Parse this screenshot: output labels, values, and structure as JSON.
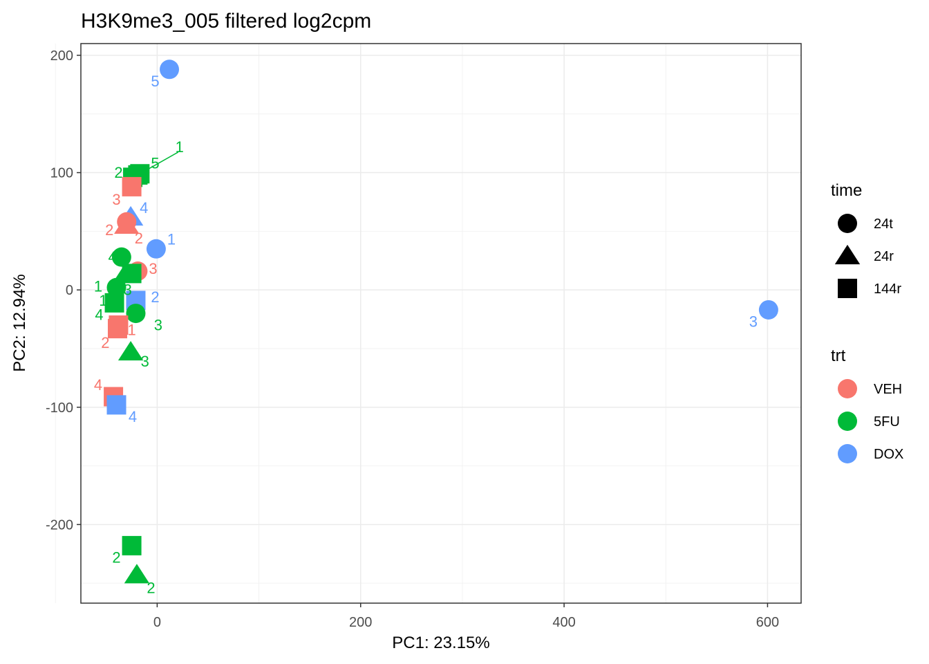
{
  "chart_data": {
    "type": "scatter",
    "title": "H3K9me3_005 filtered log2cpm",
    "xlabel": "PC1: 23.15%",
    "ylabel": "PC2: 12.94%",
    "xlim": [
      -75,
      633
    ],
    "ylim": [
      -267,
      210
    ],
    "x_ticks": [
      0,
      200,
      400,
      600
    ],
    "y_ticks": [
      -200,
      -100,
      0,
      100,
      200
    ],
    "grid": true,
    "legend_position": "right",
    "color_legend": {
      "title": "trt",
      "entries": [
        {
          "label": "VEH",
          "color": "#F8766D"
        },
        {
          "label": "5FU",
          "color": "#00BA38"
        },
        {
          "label": "DOX",
          "color": "#619CFF"
        }
      ]
    },
    "shape_legend": {
      "title": "time",
      "entries": [
        {
          "label": "24t",
          "shape": "circle"
        },
        {
          "label": "24r",
          "shape": "triangle"
        },
        {
          "label": "144r",
          "shape": "square"
        }
      ]
    },
    "points": [
      {
        "trt": "DOX",
        "time": "24t",
        "x": 12,
        "y": 188,
        "label": "5",
        "lx": -2,
        "ly": 177
      },
      {
        "trt": "5FU",
        "time": "144r",
        "x": -17,
        "y": 99,
        "label": "5",
        "lx": -2,
        "ly": 107
      },
      {
        "trt": "5FU",
        "time": "144r",
        "x": -19,
        "y": 98,
        "label": "1",
        "lx": 22,
        "ly": 121,
        "line": true
      },
      {
        "trt": "5FU",
        "time": "144r",
        "x": -24,
        "y": 96,
        "label": "2",
        "lx": -38,
        "ly": 99
      },
      {
        "trt": "VEH",
        "time": "144r",
        "x": -25,
        "y": 88,
        "label": "3",
        "lx": -40,
        "ly": 76
      },
      {
        "trt": "DOX",
        "time": "24r",
        "x": -26,
        "y": 62,
        "label": "4",
        "lx": -13,
        "ly": 69
      },
      {
        "trt": "VEH",
        "time": "24t",
        "x": -30,
        "y": 58,
        "label": "2",
        "lx": -47,
        "ly": 50
      },
      {
        "trt": "VEH",
        "time": "24r",
        "x": -30,
        "y": 55,
        "label": "2",
        "lx": -18,
        "ly": 43
      },
      {
        "trt": "DOX",
        "time": "24t",
        "x": -1,
        "y": 35,
        "label": "1",
        "lx": 14,
        "ly": 42
      },
      {
        "trt": "5FU",
        "time": "24t",
        "x": -35,
        "y": 28,
        "label": "4",
        "lx": -44,
        "ly": 27
      },
      {
        "trt": "VEH",
        "time": "24t",
        "x": -19,
        "y": 16,
        "label": "3",
        "lx": -4,
        "ly": 17
      },
      {
        "trt": "5FU",
        "time": "24r",
        "x": -30,
        "y": 15,
        "label": "1",
        "lx": -58,
        "ly": 2
      },
      {
        "trt": "5FU",
        "time": "144r",
        "x": -25,
        "y": 14,
        "label": "3",
        "lx": -29,
        "ly": -1
      },
      {
        "trt": "5FU",
        "time": "24t",
        "x": -40,
        "y": 2,
        "label": "1",
        "lx": -53,
        "ly": -10
      },
      {
        "trt": "DOX",
        "time": "144r",
        "x": -21,
        "y": -9,
        "label": "2",
        "lx": -2,
        "ly": -7
      },
      {
        "trt": "5FU",
        "time": "144r",
        "x": -42,
        "y": -11,
        "label": "4",
        "lx": -57,
        "ly": -22
      },
      {
        "trt": "5FU",
        "time": "24t",
        "x": -21,
        "y": -20,
        "label": "3",
        "lx": 1,
        "ly": -31
      },
      {
        "trt": "VEH",
        "time": "144r",
        "x": -38,
        "y": -30,
        "label": "1",
        "lx": -25,
        "ly": -35
      },
      {
        "trt": "VEH",
        "time": "144r",
        "x": -39,
        "y": -33,
        "label": "2",
        "lx": -51,
        "ly": -46
      },
      {
        "trt": "5FU",
        "time": "24r",
        "x": -26,
        "y": -53,
        "label": "3",
        "lx": -12,
        "ly": -62
      },
      {
        "trt": "VEH",
        "time": "144r",
        "x": -43,
        "y": -91,
        "label": "4",
        "lx": -58,
        "ly": -82
      },
      {
        "trt": "DOX",
        "time": "144r",
        "x": -40,
        "y": -98,
        "label": "4",
        "lx": -24,
        "ly": -109
      },
      {
        "trt": "DOX",
        "time": "24t",
        "x": 601,
        "y": -17,
        "label": "3",
        "lx": 586,
        "ly": -28
      },
      {
        "trt": "5FU",
        "time": "144r",
        "x": -25,
        "y": -218,
        "label": "2",
        "lx": -40,
        "ly": -229
      },
      {
        "trt": "5FU",
        "time": "24r",
        "x": -20,
        "y": -243,
        "label": "2",
        "lx": -6,
        "ly": -255
      }
    ]
  }
}
